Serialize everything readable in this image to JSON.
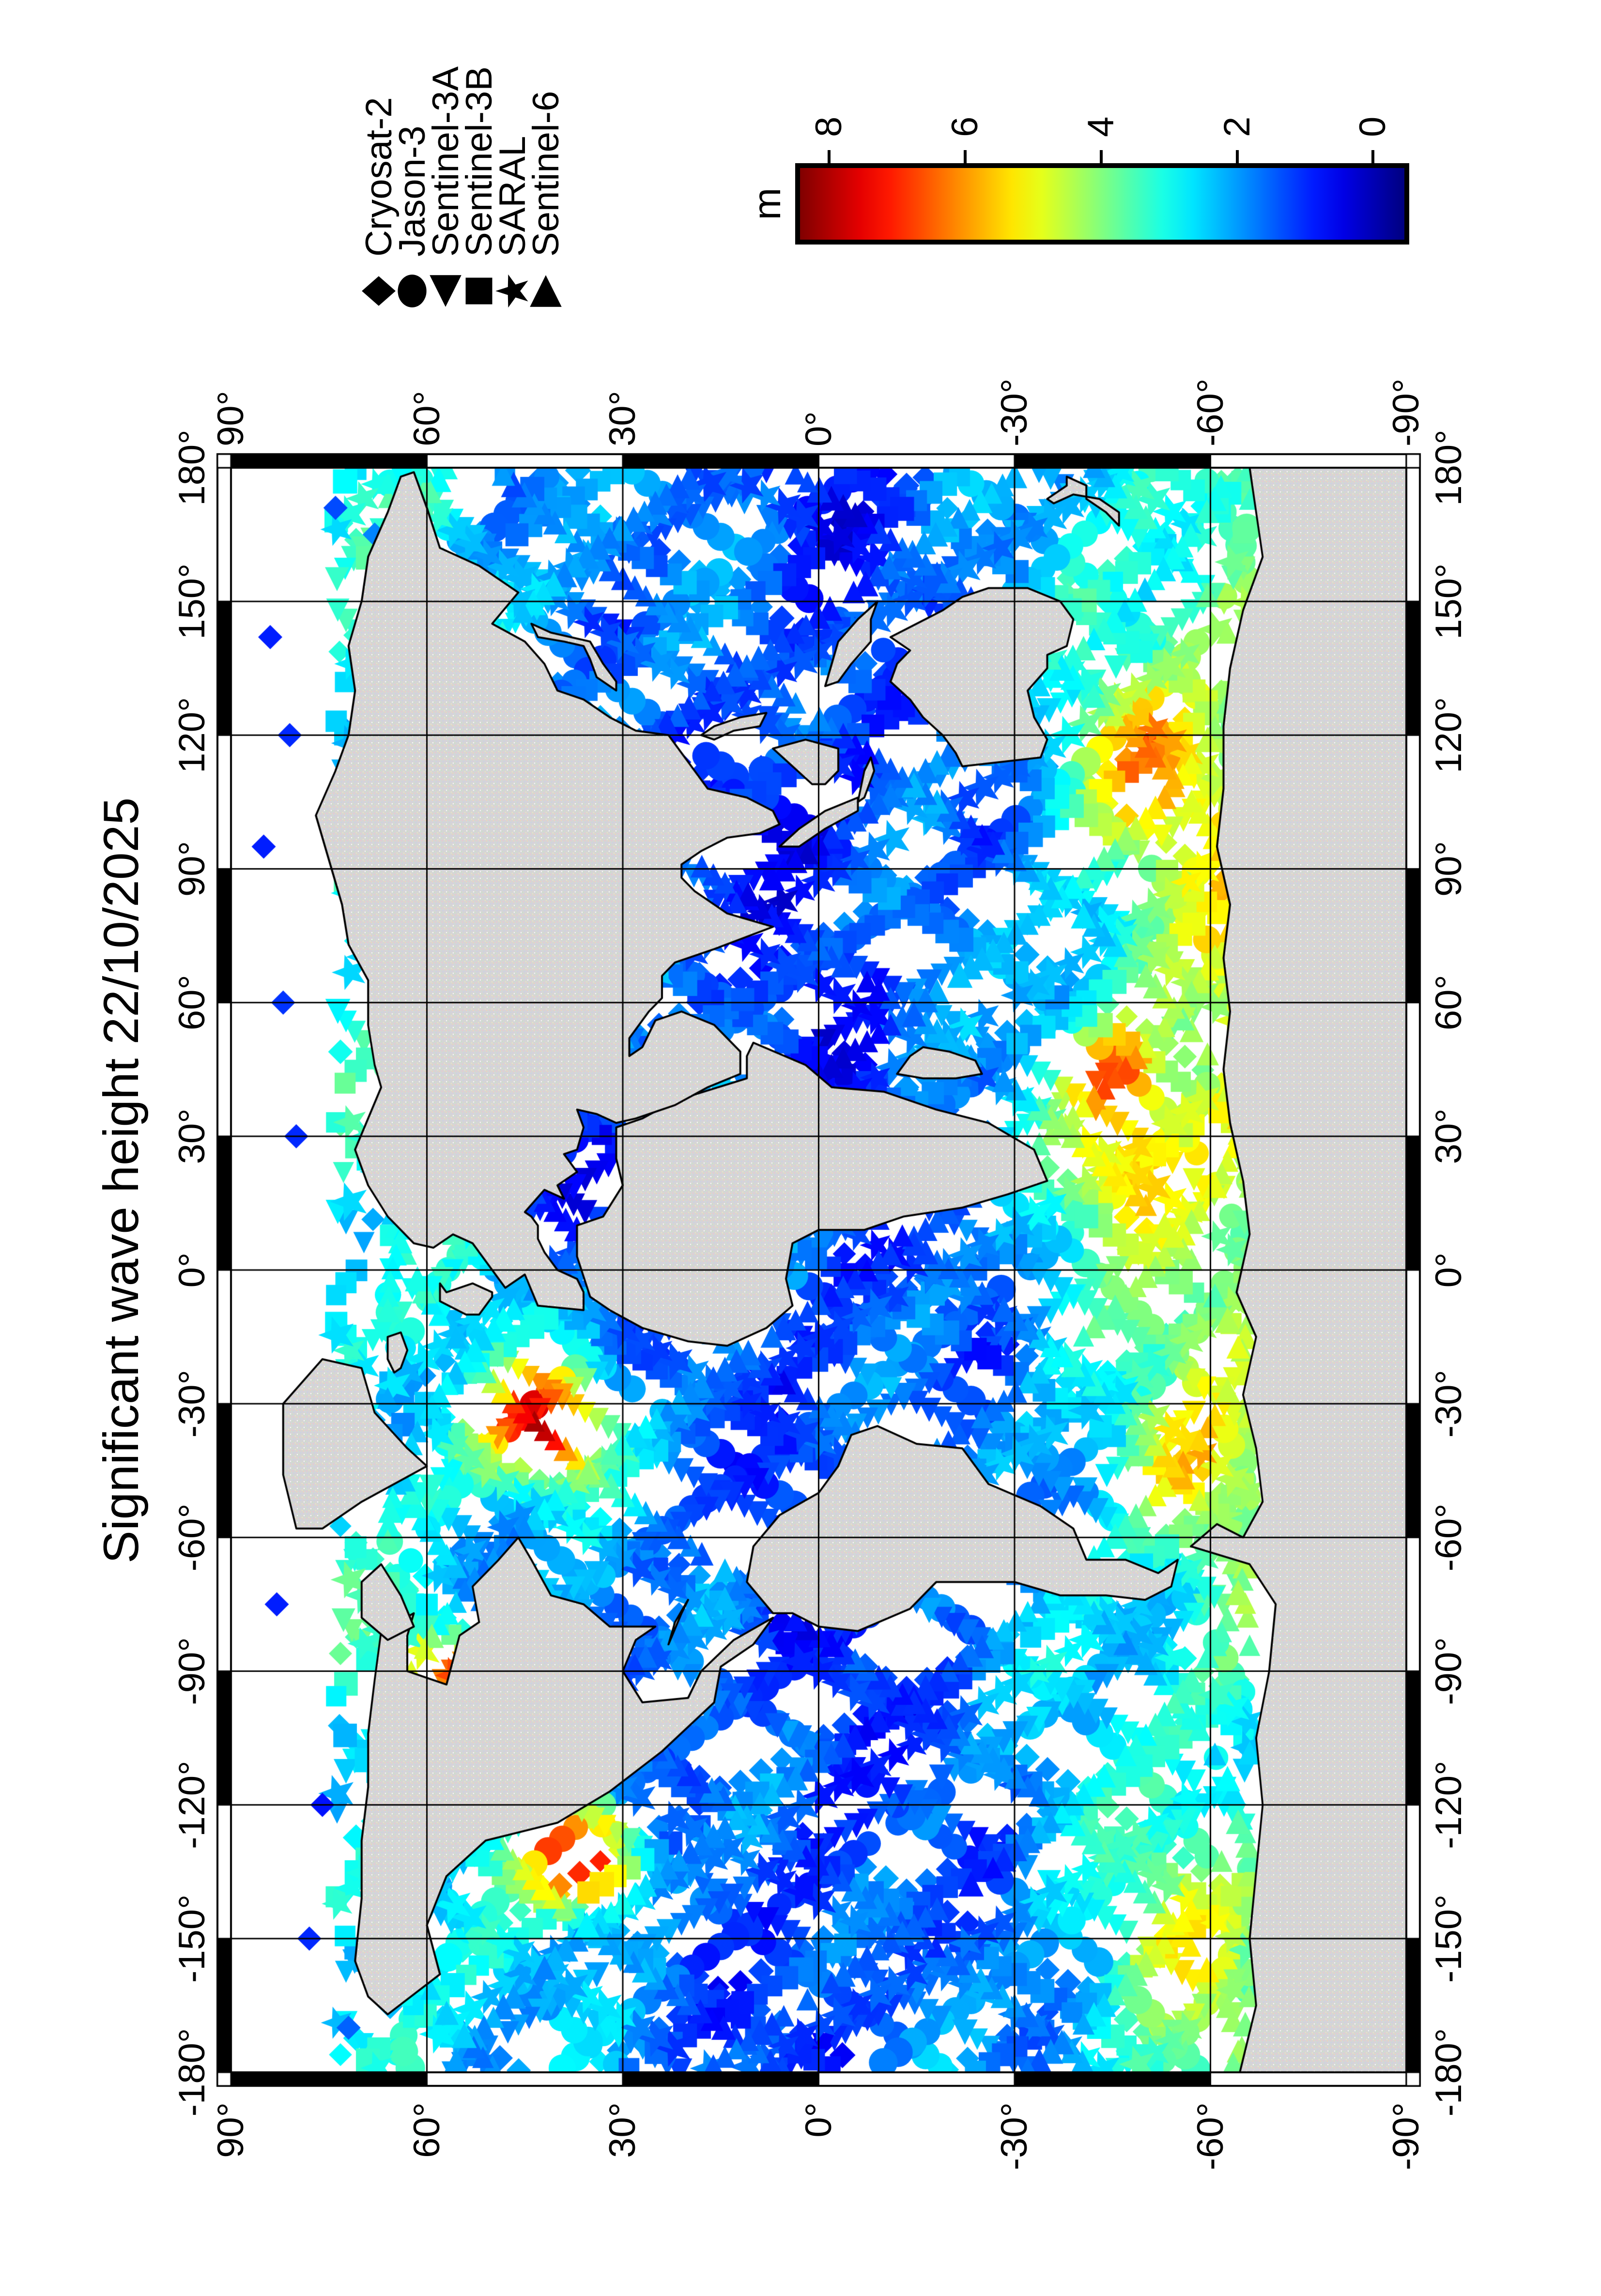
{
  "title": "Significant wave height 22/10/2025",
  "legend": {
    "items": [
      {
        "label": "Cryosat-2",
        "symbol": "diamond"
      },
      {
        "label": "Jason-3",
        "symbol": "circle"
      },
      {
        "label": "Sentinel-3A",
        "symbol": "triangle-left"
      },
      {
        "label": "Sentinel-3B",
        "symbol": "square"
      },
      {
        "label": "SARAL",
        "symbol": "star"
      },
      {
        "label": "Sentinel-6",
        "symbol": "triangle-right"
      }
    ]
  },
  "colorbar": {
    "unit_label": "m",
    "tick_labels": [
      "8",
      "6",
      "4",
      "2",
      "0"
    ],
    "tick_values": [
      8,
      6,
      4,
      2,
      0
    ],
    "min": 0,
    "max": 8
  },
  "axes": {
    "lon_tick_labels": [
      "-180°",
      "-150°",
      "-120°",
      "-90°",
      "-60°",
      "-30°",
      "0°",
      "30°",
      "60°",
      "90°",
      "120°",
      "150°",
      "180°"
    ],
    "lat_tick_labels": [
      "90°",
      "60°",
      "30°",
      "0°",
      "-30°",
      "-60°",
      "-90°"
    ]
  },
  "chart_data": {
    "type": "scatter",
    "title": "Significant wave height 22/10/2025",
    "date": "22/10/2025",
    "variable": "Significant wave height",
    "unit": "m",
    "map": {
      "projection": "equirectangular world map",
      "lon_range": [
        -180,
        180
      ],
      "lat_range": [
        -90,
        90
      ],
      "grid_step_deg": 30,
      "frame_style": "GMT fancy frame, alternating black/white 30-degree segments",
      "land_fill": "light gray with pastel speckle pattern",
      "ocean_fill": "white",
      "orientation": "figure rotated 90 degrees (portrait page, title reads bottom-to-top)"
    },
    "colorbar": {
      "label": "m",
      "range_m": [
        0,
        8
      ],
      "ticks_m": [
        0,
        2,
        4,
        6,
        8
      ],
      "colormap": "jet: dark blue 0 m, cyan 2-3 m, green 3-4 m, yellow 5 m, orange 6 m, red 7-8 m"
    },
    "series": [
      {
        "name": "Cryosat-2",
        "marker": "diamond"
      },
      {
        "name": "Jason-3",
        "marker": "circle"
      },
      {
        "name": "Sentinel-3A",
        "marker": "triangle-left"
      },
      {
        "name": "Sentinel-3B",
        "marker": "square"
      },
      {
        "name": "SARAL",
        "marker": "star"
      },
      {
        "name": "Sentinel-6",
        "marker": "triangle-right"
      }
    ],
    "observed_features": [
      {
        "region": "North Atlantic storm near 35W 42N",
        "swh_m": "7-8"
      },
      {
        "region": "Northeast Pacific storm near 132W 36N",
        "swh_m": "7-8"
      },
      {
        "region": "Hudson Bay area near 90W 57N",
        "swh_m": "5-6"
      },
      {
        "region": "Southern Ocean belt 40S-65S",
        "swh_m": "3-6"
      },
      {
        "region": "South of Madagascar near 45E 45S",
        "swh_m": "6-7"
      },
      {
        "region": "South of Australia near 113E 49S",
        "swh_m": "5-6"
      },
      {
        "region": "Tropical oceans",
        "swh_m": "1-3"
      },
      {
        "region": "Arctic ocean, Mediterranean, marginal seas",
        "swh_m": "0.5-1.5"
      }
    ]
  }
}
